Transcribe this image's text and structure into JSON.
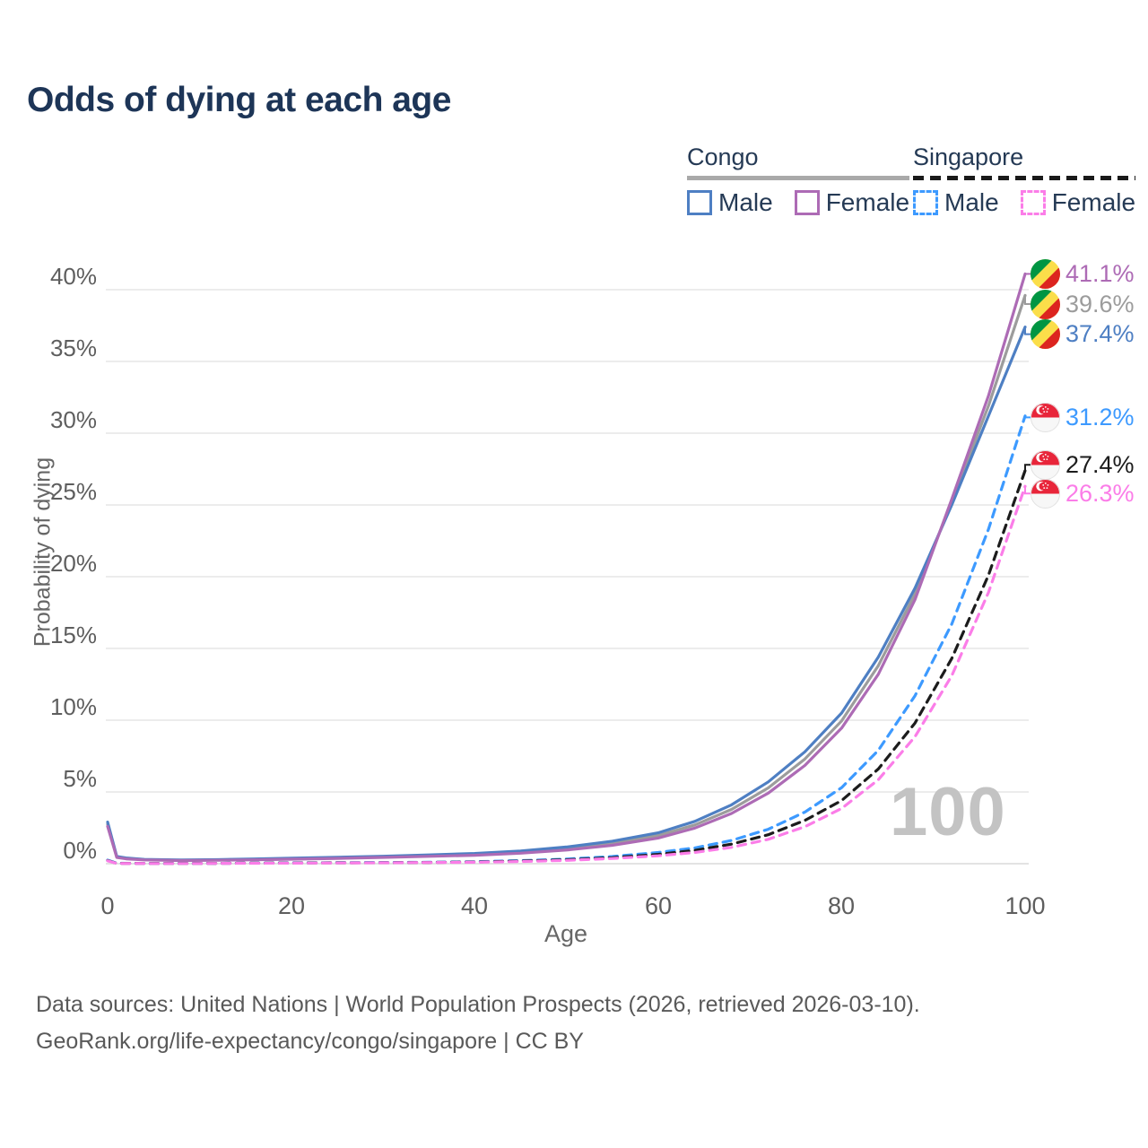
{
  "header": {
    "title": "Odds of dying at each age"
  },
  "legend": {
    "groups": [
      {
        "name": "Congo",
        "underline_color": "#a9a9a9",
        "underline_style": "solid",
        "items": [
          {
            "label": "Male",
            "color": "#4e7fc3",
            "dashed": false
          },
          {
            "label": "Female",
            "color": "#ad6bb5",
            "dashed": false
          }
        ]
      },
      {
        "name": "Singapore",
        "underline_color": "#1a1a1a",
        "underline_style": "dashed",
        "items": [
          {
            "label": "Male",
            "color": "#3d9aff",
            "dashed": true
          },
          {
            "label": "Female",
            "color": "#fb7de8",
            "dashed": true
          }
        ]
      }
    ]
  },
  "chart_data": {
    "type": "line",
    "title": "Odds of dying at each age",
    "xlabel": "Age",
    "ylabel": "Probability of dying",
    "xlim": [
      0,
      100
    ],
    "ylim": [
      0,
      42
    ],
    "grid": "horizontal",
    "legend_position": "top-right",
    "watermark": "100",
    "xticks": [
      {
        "value": 0,
        "label": "0"
      },
      {
        "value": 20,
        "label": "20"
      },
      {
        "value": 40,
        "label": "40"
      },
      {
        "value": 60,
        "label": "60"
      },
      {
        "value": 80,
        "label": "80"
      },
      {
        "value": 100,
        "label": "100"
      }
    ],
    "yticks": [
      {
        "value": 0,
        "label": "0%"
      },
      {
        "value": 5,
        "label": "5%"
      },
      {
        "value": 10,
        "label": "10%"
      },
      {
        "value": 15,
        "label": "15%"
      },
      {
        "value": 20,
        "label": "20%"
      },
      {
        "value": 25,
        "label": "25%"
      },
      {
        "value": 30,
        "label": "30%"
      },
      {
        "value": 35,
        "label": "35%"
      },
      {
        "value": 40,
        "label": "40%"
      }
    ],
    "series": [
      {
        "name": "Congo Both sexes",
        "country": "Congo",
        "sex": "both",
        "color": "#9c9c9c",
        "dashed": false,
        "points": [
          [
            0,
            2.75
          ],
          [
            1,
            0.46
          ],
          [
            2,
            0.37
          ],
          [
            4,
            0.28
          ],
          [
            8,
            0.24
          ],
          [
            12,
            0.26
          ],
          [
            16,
            0.3
          ],
          [
            20,
            0.35
          ],
          [
            25,
            0.41
          ],
          [
            30,
            0.48
          ],
          [
            35,
            0.56
          ],
          [
            40,
            0.65
          ],
          [
            45,
            0.81
          ],
          [
            50,
            1.05
          ],
          [
            55,
            1.42
          ],
          [
            60,
            1.96
          ],
          [
            64,
            2.7
          ],
          [
            68,
            3.78
          ],
          [
            72,
            5.28
          ],
          [
            76,
            7.3
          ],
          [
            80,
            9.95
          ],
          [
            84,
            13.8
          ],
          [
            88,
            18.8
          ],
          [
            92,
            25.2
          ],
          [
            96,
            31.9
          ],
          [
            100,
            39.6
          ]
        ]
      },
      {
        "name": "Congo Male",
        "country": "Congo",
        "sex": "male",
        "color": "#4e7fc3",
        "dashed": false,
        "points": [
          [
            0,
            2.9
          ],
          [
            1,
            0.5
          ],
          [
            2,
            0.4
          ],
          [
            4,
            0.3
          ],
          [
            8,
            0.26
          ],
          [
            12,
            0.28
          ],
          [
            16,
            0.33
          ],
          [
            20,
            0.38
          ],
          [
            25,
            0.45
          ],
          [
            30,
            0.52
          ],
          [
            35,
            0.61
          ],
          [
            40,
            0.71
          ],
          [
            45,
            0.89
          ],
          [
            50,
            1.16
          ],
          [
            55,
            1.57
          ],
          [
            60,
            2.15
          ],
          [
            64,
            2.95
          ],
          [
            68,
            4.1
          ],
          [
            72,
            5.7
          ],
          [
            76,
            7.8
          ],
          [
            80,
            10.5
          ],
          [
            84,
            14.4
          ],
          [
            88,
            19.2
          ],
          [
            92,
            25.0
          ],
          [
            96,
            31.2
          ],
          [
            100,
            37.4
          ]
        ]
      },
      {
        "name": "Congo Female",
        "country": "Congo",
        "sex": "female",
        "color": "#ad6bb5",
        "dashed": false,
        "points": [
          [
            0,
            2.6
          ],
          [
            1,
            0.43
          ],
          [
            2,
            0.34
          ],
          [
            4,
            0.26
          ],
          [
            8,
            0.22
          ],
          [
            12,
            0.24
          ],
          [
            16,
            0.27
          ],
          [
            20,
            0.31
          ],
          [
            25,
            0.37
          ],
          [
            30,
            0.44
          ],
          [
            35,
            0.51
          ],
          [
            40,
            0.59
          ],
          [
            45,
            0.73
          ],
          [
            50,
            0.95
          ],
          [
            55,
            1.28
          ],
          [
            60,
            1.79
          ],
          [
            64,
            2.48
          ],
          [
            68,
            3.5
          ],
          [
            72,
            4.92
          ],
          [
            76,
            6.85
          ],
          [
            80,
            9.45
          ],
          [
            84,
            13.2
          ],
          [
            88,
            18.4
          ],
          [
            92,
            25.4
          ],
          [
            96,
            32.6
          ],
          [
            100,
            41.1
          ]
        ]
      },
      {
        "name": "Singapore Male",
        "country": "Singapore",
        "sex": "male",
        "color": "#3d9aff",
        "dashed": true,
        "points": [
          [
            0,
            0.25
          ],
          [
            1,
            0.03
          ],
          [
            5,
            0.02
          ],
          [
            10,
            0.02
          ],
          [
            15,
            0.04
          ],
          [
            20,
            0.06
          ],
          [
            25,
            0.07
          ],
          [
            30,
            0.08
          ],
          [
            35,
            0.1
          ],
          [
            40,
            0.14
          ],
          [
            45,
            0.21
          ],
          [
            50,
            0.32
          ],
          [
            55,
            0.5
          ],
          [
            60,
            0.78
          ],
          [
            64,
            1.1
          ],
          [
            68,
            1.62
          ],
          [
            72,
            2.4
          ],
          [
            76,
            3.6
          ],
          [
            80,
            5.3
          ],
          [
            84,
            7.9
          ],
          [
            88,
            11.7
          ],
          [
            92,
            16.7
          ],
          [
            96,
            23.3
          ],
          [
            100,
            31.2
          ]
        ]
      },
      {
        "name": "Singapore Both sexes",
        "country": "Singapore",
        "sex": "both",
        "color": "#1c1c1c",
        "dashed": true,
        "points": [
          [
            0,
            0.22
          ],
          [
            1,
            0.025
          ],
          [
            5,
            0.018
          ],
          [
            10,
            0.018
          ],
          [
            15,
            0.035
          ],
          [
            20,
            0.05
          ],
          [
            25,
            0.06
          ],
          [
            30,
            0.07
          ],
          [
            35,
            0.09
          ],
          [
            40,
            0.12
          ],
          [
            45,
            0.18
          ],
          [
            50,
            0.27
          ],
          [
            55,
            0.42
          ],
          [
            60,
            0.65
          ],
          [
            64,
            0.93
          ],
          [
            68,
            1.36
          ],
          [
            72,
            2.02
          ],
          [
            76,
            3.02
          ],
          [
            80,
            4.4
          ],
          [
            84,
            6.6
          ],
          [
            88,
            9.8
          ],
          [
            92,
            14.3
          ],
          [
            96,
            20.1
          ],
          [
            100,
            27.4
          ]
        ]
      },
      {
        "name": "Singapore Female",
        "country": "Singapore",
        "sex": "female",
        "color": "#fb7de8",
        "dashed": true,
        "points": [
          [
            0,
            0.2
          ],
          [
            1,
            0.02
          ],
          [
            5,
            0.015
          ],
          [
            10,
            0.015
          ],
          [
            15,
            0.03
          ],
          [
            20,
            0.04
          ],
          [
            25,
            0.05
          ],
          [
            30,
            0.06
          ],
          [
            35,
            0.08
          ],
          [
            40,
            0.1
          ],
          [
            45,
            0.15
          ],
          [
            50,
            0.23
          ],
          [
            55,
            0.36
          ],
          [
            60,
            0.55
          ],
          [
            64,
            0.78
          ],
          [
            68,
            1.14
          ],
          [
            72,
            1.7
          ],
          [
            76,
            2.58
          ],
          [
            80,
            3.85
          ],
          [
            84,
            5.85
          ],
          [
            88,
            8.85
          ],
          [
            92,
            13.1
          ],
          [
            96,
            18.9
          ],
          [
            100,
            26.3
          ]
        ]
      }
    ],
    "annotations": [
      {
        "text": "41.1%",
        "flag": "congo",
        "color": "#ad6bb5",
        "end_pct": 41.1,
        "label_pct": 41.1
      },
      {
        "text": "39.6%",
        "flag": "congo",
        "color": "#9c9c9c",
        "end_pct": 39.6,
        "label_pct": 39.0
      },
      {
        "text": "37.4%",
        "flag": "congo",
        "color": "#4e7fc3",
        "end_pct": 37.4,
        "label_pct": 36.9
      },
      {
        "text": "31.2%",
        "flag": "singapore",
        "color": "#3d9aff",
        "end_pct": 31.2,
        "label_pct": 31.1
      },
      {
        "text": "27.4%",
        "flag": "singapore",
        "color": "#1c1c1c",
        "end_pct": 27.4,
        "label_pct": 27.8
      },
      {
        "text": "26.3%",
        "flag": "singapore",
        "color": "#fb7de8",
        "end_pct": 26.3,
        "label_pct": 25.8
      }
    ],
    "plot_colors": {
      "gridline": "#ececec",
      "axis_line": "#e3e3e3",
      "watermark": "#c3c3c3"
    }
  },
  "footer": {
    "line1": "Data sources: United Nations | World Population Prospects (2026, retrieved 2026-03-10).",
    "line2": "GeoRank.org/life-expectancy/congo/singapore | CC BY"
  }
}
